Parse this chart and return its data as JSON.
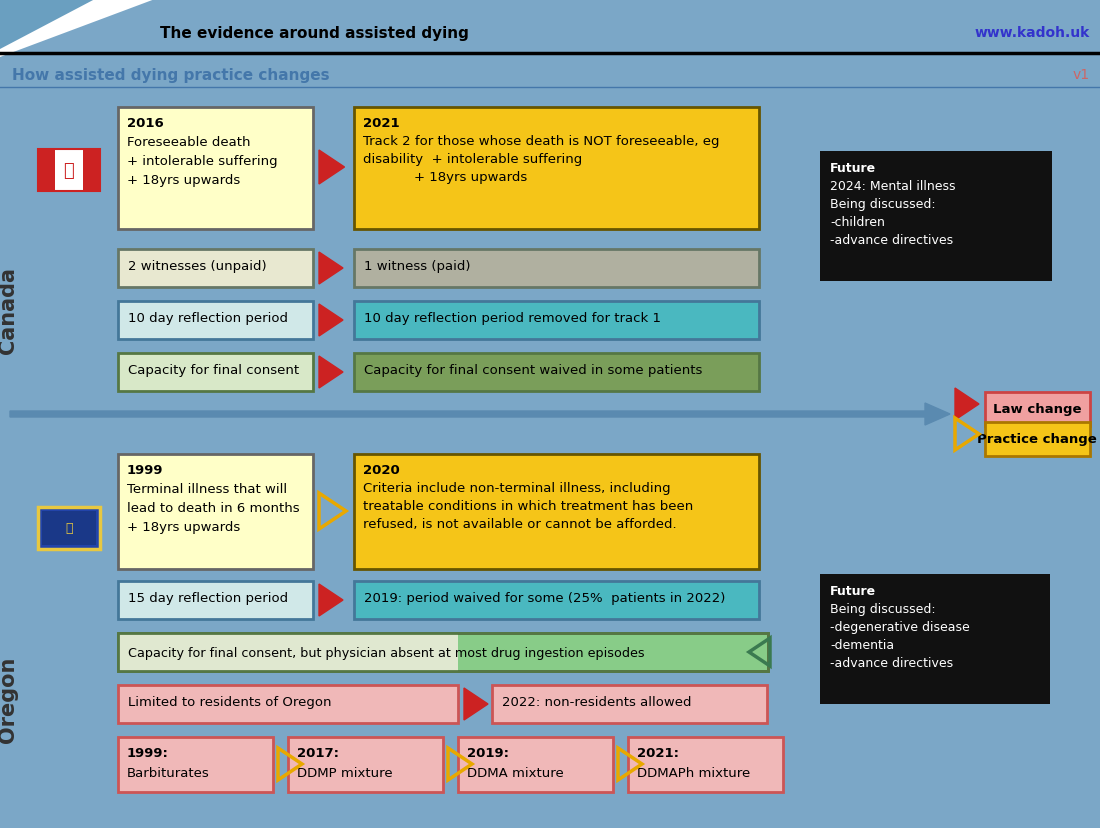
{
  "bg_color": "#7ba7c7",
  "title_text": "The evidence around assisted dying",
  "url_text": "www.kadoh.uk",
  "subtitle_text": "How assisted dying practice changes",
  "version_text": "v1",
  "canada_label": "Canada",
  "oregon_label": "Oregon"
}
